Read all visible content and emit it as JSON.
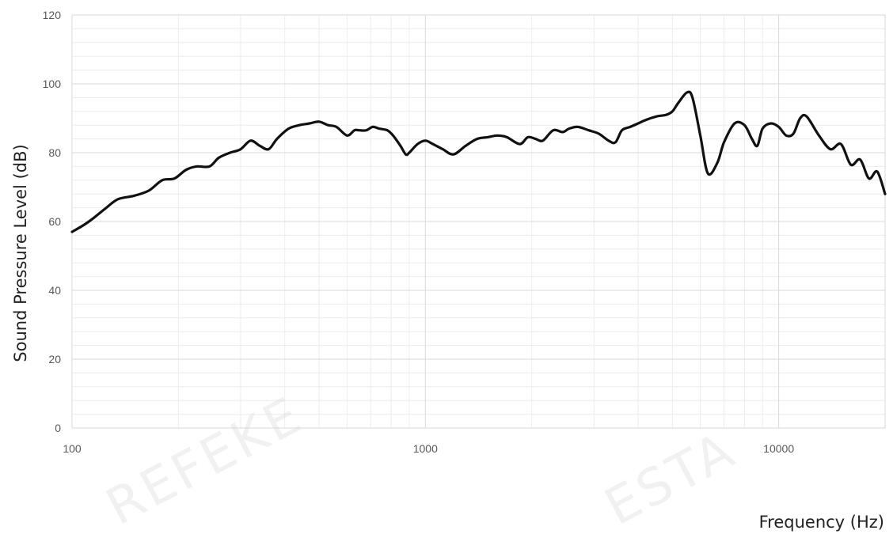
{
  "chart_data": {
    "type": "line",
    "title": "",
    "xlabel": "Frequency (Hz)",
    "ylabel": "Sound Pressure Level (dB)",
    "x_scale": "log",
    "xlim": [
      100,
      20000
    ],
    "ylim": [
      0,
      120
    ],
    "x_ticks": [
      {
        "value": 100,
        "label": "100"
      },
      {
        "value": 1000,
        "label": "1000"
      },
      {
        "value": 10000,
        "label": "10000"
      }
    ],
    "y_ticks": [
      {
        "value": 0,
        "label": "0"
      },
      {
        "value": 20,
        "label": "20"
      },
      {
        "value": 40,
        "label": "40"
      },
      {
        "value": 60,
        "label": "60"
      },
      {
        "value": 80,
        "label": "80"
      },
      {
        "value": 100,
        "label": "100"
      },
      {
        "value": 120,
        "label": "120"
      }
    ],
    "grid": true,
    "minor_grid": true,
    "line_color": "#111111",
    "grid_color": "#d9d9d9",
    "minor_grid_color": "#ececec",
    "series": [
      {
        "x": [
          100,
          108,
          115,
          125,
          135,
          150,
          165,
          180,
          195,
          210,
          225,
          245,
          260,
          280,
          300,
          320,
          340,
          360,
          380,
          410,
          440,
          470,
          500,
          530,
          560,
          600,
          630,
          650,
          680,
          710,
          740,
          780,
          810,
          850,
          880,
          900,
          950,
          1000,
          1050,
          1120,
          1200,
          1300,
          1400,
          1500,
          1600,
          1700,
          1850,
          1950,
          2050,
          2150,
          2300,
          2450,
          2550,
          2700,
          2900,
          3100,
          3300,
          3450,
          3600,
          3800,
          4000,
          4200,
          4500,
          4800,
          5000,
          5200,
          5500,
          5700,
          6000,
          6300,
          6700,
          7000,
          7500,
          8000,
          8400,
          8700,
          9000,
          9500,
          10000,
          10500,
          11000,
          11500,
          12000,
          13000,
          14000,
          15000,
          16000,
          17000,
          18000,
          19000,
          20000
        ],
        "y": [
          57,
          59,
          61,
          64,
          66.5,
          67.5,
          69,
          72,
          72.5,
          75,
          76,
          76,
          78.5,
          80,
          81,
          83.5,
          82,
          81,
          84,
          87,
          88,
          88.5,
          89,
          88,
          87.5,
          85,
          86.5,
          86.5,
          86.5,
          87.5,
          87,
          86.5,
          85,
          82,
          79.5,
          80,
          82.5,
          83.5,
          82.5,
          81,
          79.5,
          82,
          84,
          84.5,
          85,
          84.5,
          82.5,
          84.5,
          84,
          83.5,
          86.5,
          86,
          87,
          87.5,
          86.5,
          85.5,
          83.5,
          83,
          86.5,
          87.5,
          88.5,
          89.5,
          90.5,
          91,
          92,
          94.5,
          97.5,
          96,
          85,
          74,
          77,
          83,
          88.5,
          88,
          84,
          82,
          87,
          88.5,
          87.5,
          85,
          85.5,
          90,
          90.5,
          85,
          81,
          82.5,
          76.5,
          78,
          72.5,
          74.5,
          68
        ]
      }
    ]
  },
  "watermarks": [
    "REFEKE",
    "ESTA"
  ]
}
